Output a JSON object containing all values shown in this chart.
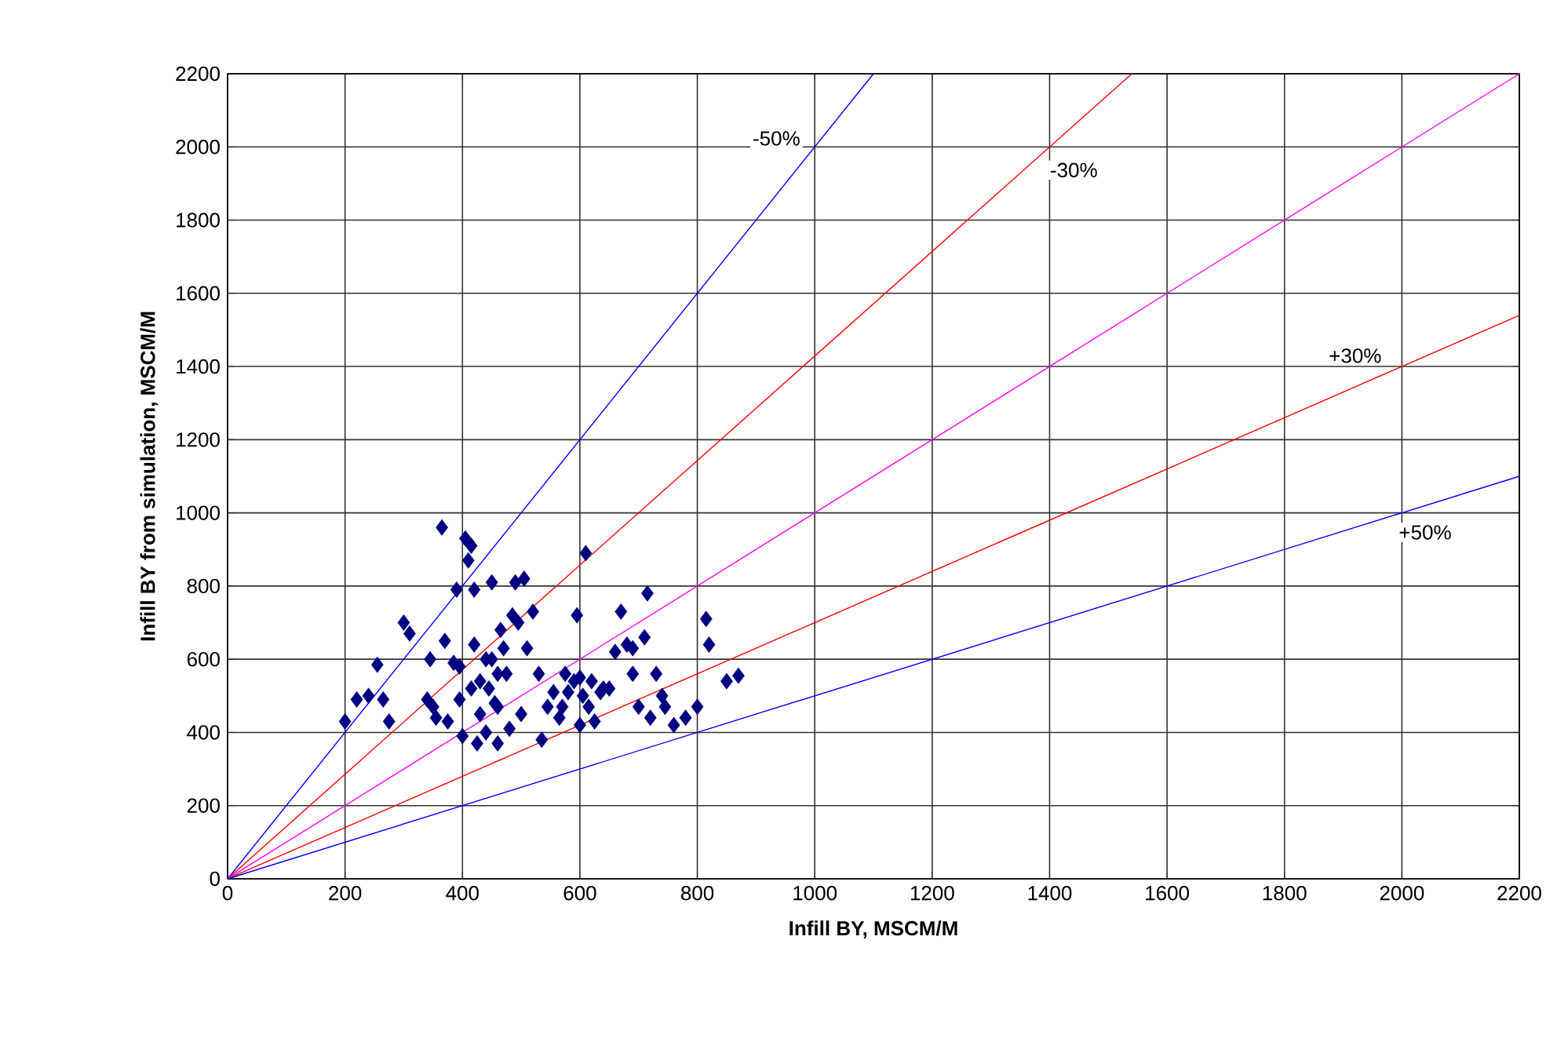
{
  "chart_data": {
    "type": "scatter",
    "xlabel": "Infill BY, MSCM/M",
    "ylabel": "Infill BY from simulation, MSCM/M",
    "xlim": [
      0,
      2200
    ],
    "ylim": [
      0,
      2200
    ],
    "xticks": [
      0,
      200,
      400,
      600,
      800,
      1000,
      1200,
      1400,
      1600,
      1800,
      2000,
      2200
    ],
    "yticks": [
      0,
      200,
      400,
      600,
      800,
      1000,
      1200,
      1400,
      1600,
      1800,
      2000,
      2200
    ],
    "grid": true,
    "series": [
      {
        "color": "#000080",
        "marker": "diamond",
        "x": [
          200,
          220,
          240,
          255,
          265,
          275,
          300,
          310,
          340,
          345,
          350,
          355,
          365,
          370,
          375,
          385,
          390,
          395,
          400,
          405,
          410,
          415,
          415,
          420,
          420,
          425,
          430,
          430,
          440,
          445,
          450,
          450,
          455,
          460,
          460,
          465,
          470,
          475,
          480,
          485,
          490,
          495,
          500,
          505,
          510,
          520,
          530,
          535,
          545,
          555,
          565,
          575,
          580,
          590,
          595,
          600,
          605,
          610,
          615,
          620,
          625,
          635,
          640,
          660,
          670,
          680,
          690,
          700,
          710,
          715,
          720,
          730,
          740,
          745,
          760,
          780,
          800,
          815,
          820,
          850,
          870,
          395,
          440,
          460,
          570,
          600,
          650,
          690
        ],
        "values": [
          430,
          490,
          500,
          585,
          490,
          430,
          700,
          670,
          490,
          600,
          470,
          440,
          960,
          650,
          430,
          590,
          790,
          490,
          390,
          930,
          870,
          910,
          520,
          640,
          790,
          370,
          540,
          450,
          600,
          520,
          810,
          600,
          480,
          560,
          370,
          680,
          630,
          560,
          410,
          720,
          810,
          700,
          450,
          820,
          630,
          730,
          560,
          380,
          470,
          510,
          440,
          560,
          510,
          540,
          720,
          420,
          500,
          890,
          470,
          540,
          430,
          510,
          520,
          620,
          730,
          640,
          560,
          470,
          660,
          780,
          440,
          560,
          500,
          470,
          420,
          440,
          470,
          710,
          640,
          540,
          555,
          580,
          400,
          470,
          470,
          550,
          520,
          630
        ]
      },
      {
        "type": "line",
        "name": "-50%",
        "color": "#0000ff",
        "marker": "none",
        "x": [
          0,
          1100
        ],
        "values": [
          0,
          2200
        ]
      },
      {
        "type": "line",
        "name": "-30%",
        "color": "#ff0000",
        "marker": "none",
        "x": [
          0,
          1540
        ],
        "values": [
          0,
          2200
        ]
      },
      {
        "type": "line",
        "color": "#ff00ff",
        "marker": "none",
        "x": [
          0,
          2200
        ],
        "values": [
          0,
          2200
        ]
      },
      {
        "type": "line",
        "name": "+30%",
        "color": "#ff0000",
        "marker": "none",
        "x": [
          0,
          2200
        ],
        "values": [
          0,
          1540
        ]
      },
      {
        "type": "line",
        "name": "+50%",
        "color": "#0000ff",
        "marker": "none",
        "x": [
          0,
          2200
        ],
        "values": [
          0,
          1100
        ]
      }
    ]
  }
}
